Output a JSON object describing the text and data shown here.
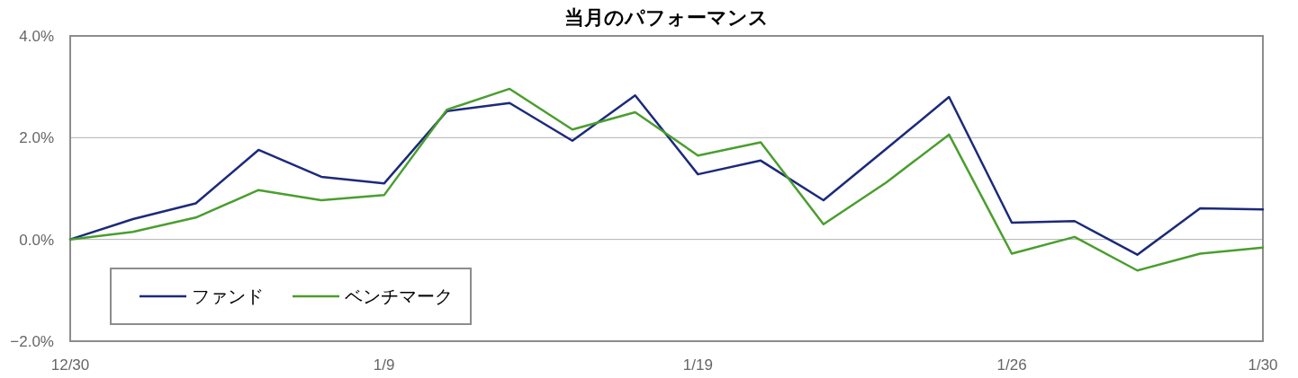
{
  "chart_data": {
    "type": "line",
    "title": "当月のパフォーマンス",
    "categories": [
      "12/30",
      null,
      null,
      null,
      null,
      "1/9",
      null,
      null,
      null,
      null,
      "1/19",
      null,
      null,
      null,
      null,
      "1/26",
      null,
      null,
      null,
      "1/30"
    ],
    "series": [
      {
        "name": "ファンド",
        "color": "#1b2a7a",
        "values": [
          0,
          0.4,
          0.71,
          1.76,
          1.23,
          1.1,
          2.52,
          2.68,
          1.94,
          2.83,
          1.28,
          1.55,
          0.77,
          1.78,
          2.8,
          0.33,
          0.36,
          -0.3,
          0.61,
          0.59
        ]
      },
      {
        "name": "ベンチマーク",
        "color": "#4a9e2e",
        "values": [
          0,
          0.15,
          0.43,
          0.97,
          0.77,
          0.87,
          2.55,
          2.96,
          2.16,
          2.5,
          1.65,
          1.91,
          0.3,
          1.12,
          2.06,
          -0.28,
          0.05,
          -0.61,
          -0.28,
          -0.16
        ]
      }
    ],
    "ylim": [
      -2,
      4
    ],
    "yticks": [
      {
        "value": -2,
        "label": "−2.0%"
      },
      {
        "value": 0,
        "label": "0.0%"
      },
      {
        "value": 2,
        "label": "2.0%"
      },
      {
        "value": 4,
        "label": "4.0%"
      }
    ],
    "grid": "y",
    "legend": "bottom left",
    "marker": "none",
    "line_style": "solid"
  }
}
